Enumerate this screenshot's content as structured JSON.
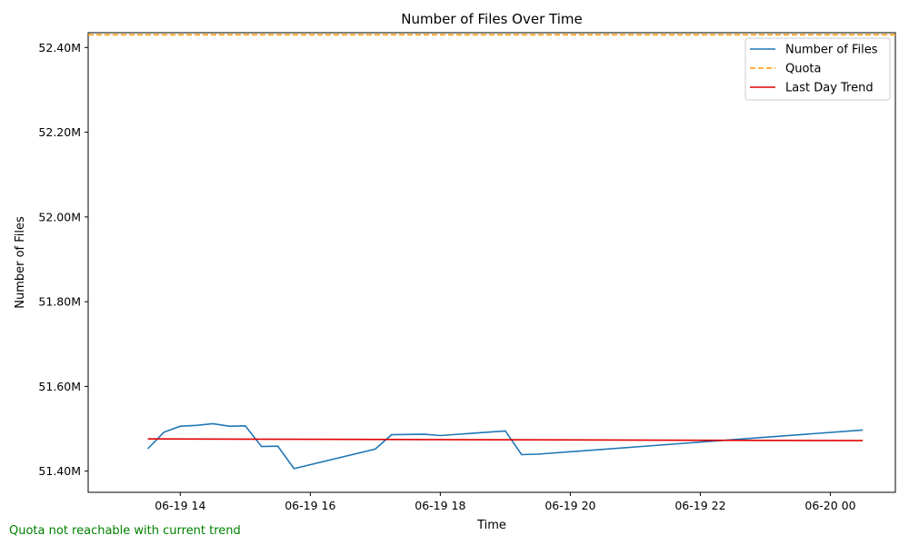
{
  "chart_data": {
    "type": "line",
    "title": "Number of Files Over Time",
    "xlabel": "Time",
    "ylabel": "Number of Files",
    "x_ticks": [
      "06-19 14",
      "06-19 16",
      "06-19 18",
      "06-19 20",
      "06-19 22",
      "06-20 00"
    ],
    "x_tick_values": [
      "2024-06-19T14:00",
      "2024-06-19T16:00",
      "2024-06-19T18:00",
      "2024-06-19T20:00",
      "2024-06-19T22:00",
      "2024-06-20T00:00"
    ],
    "y_ticks": [
      "51.40M",
      "51.60M",
      "51.80M",
      "52.00M",
      "52.20M",
      "52.40M"
    ],
    "y_tick_values": [
      51400000,
      51600000,
      51800000,
      52000000,
      52200000,
      52400000
    ],
    "xlim": [
      "2024-06-19T12:35",
      "2024-06-20T01:00"
    ],
    "ylim": [
      51350000,
      52435000
    ],
    "grid": false,
    "legend_position": "top-right",
    "series": [
      {
        "name": "Number of Files",
        "style": "solid",
        "color": "#1f77b4",
        "x": [
          "2024-06-19T13:30",
          "2024-06-19T13:45",
          "2024-06-19T14:00",
          "2024-06-19T14:15",
          "2024-06-19T14:30",
          "2024-06-19T14:45",
          "2024-06-19T15:00",
          "2024-06-19T15:15",
          "2024-06-19T15:30",
          "2024-06-19T15:45",
          "2024-06-19T17:00",
          "2024-06-19T17:15",
          "2024-06-19T17:45",
          "2024-06-19T18:00",
          "2024-06-19T19:00",
          "2024-06-19T19:15",
          "2024-06-19T19:30",
          "2024-06-20T00:30"
        ],
        "y": [
          51453000,
          51492000,
          51506000,
          51508000,
          51512000,
          51506000,
          51507000,
          51458000,
          51459000,
          51406000,
          51452000,
          51486000,
          51487000,
          51484000,
          51495000,
          51439000,
          51440000,
          51497000
        ]
      },
      {
        "name": "Quota",
        "style": "dashed",
        "color": "#ff9800",
        "x": [
          "2024-06-19T12:35",
          "2024-06-20T01:00"
        ],
        "y": [
          52430000,
          52430000
        ]
      },
      {
        "name": "Last Day Trend",
        "style": "solid",
        "color": "#e00000",
        "x": [
          "2024-06-19T13:30",
          "2024-06-20T00:30"
        ],
        "y": [
          51476000,
          51472000
        ]
      }
    ],
    "note": "Quota not reachable with current trend"
  }
}
